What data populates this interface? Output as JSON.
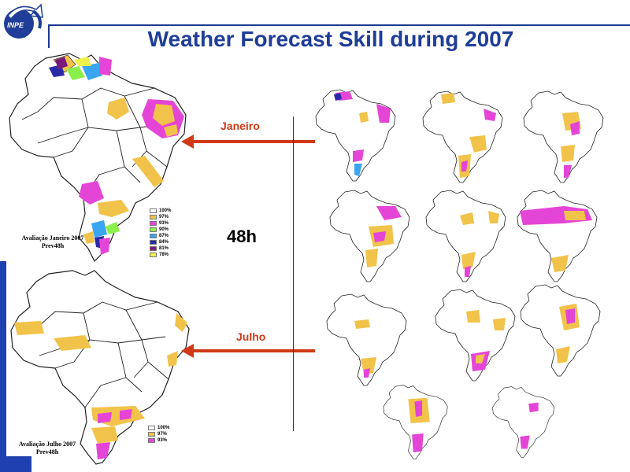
{
  "header": {
    "logo_text": "INPE",
    "title": "Weather Forecast Skill during 2007"
  },
  "arrows": {
    "top_label": "Janeiro",
    "bottom_label": "Julho",
    "lead_time": "48h"
  },
  "january_map": {
    "caption_line1": "Avaliação Janeiro 2007",
    "caption_line2": "Prev48h",
    "legend": [
      {
        "label": "100%",
        "color": "#ffffff"
      },
      {
        "label": "97%",
        "color": "#f2c34a"
      },
      {
        "label": "93%",
        "color": "#e545d6"
      },
      {
        "label": "90%",
        "color": "#8cf04a"
      },
      {
        "label": "87%",
        "color": "#3aa6f2"
      },
      {
        "label": "84%",
        "color": "#2a2aa8"
      },
      {
        "label": "81%",
        "color": "#7a1a7a"
      },
      {
        "label": "78%",
        "color": "#f0f04a"
      }
    ]
  },
  "july_map": {
    "caption_line1": "Avaliação Julho 2007",
    "caption_line2": "Prev48h",
    "legend": [
      {
        "label": "100%",
        "color": "#ffffff"
      },
      {
        "label": "97%",
        "color": "#f2c34a"
      },
      {
        "label": "93%",
        "color": "#e545d6"
      }
    ]
  },
  "colors": {
    "brand_blue": "#1f3d99",
    "arrow_red": "#d03a16",
    "skill_97": "#f2c34a",
    "skill_93": "#e545d6"
  }
}
